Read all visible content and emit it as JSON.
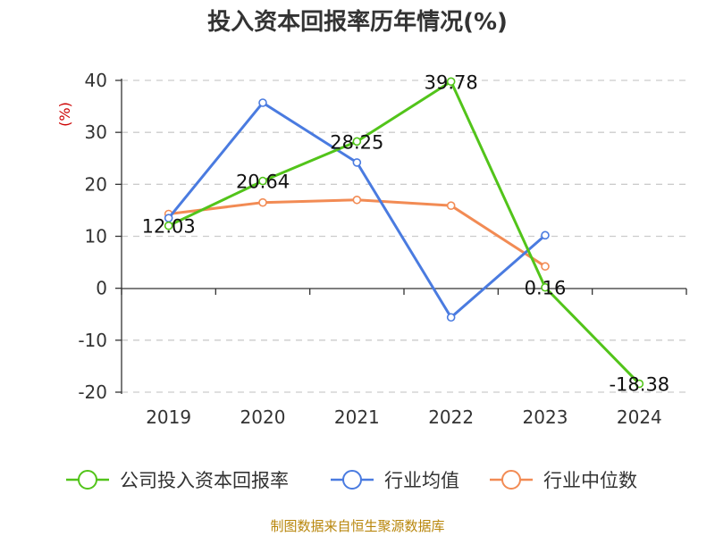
{
  "chart_data": {
    "type": "line",
    "title": "投入资本回报率历年情况(%)",
    "ylabel": "(%)",
    "categories": [
      "2019",
      "2020",
      "2021",
      "2022",
      "2023",
      "2024"
    ],
    "ylim": [
      -20,
      40
    ],
    "yticks": [
      "40",
      "30",
      "20",
      "10",
      "0",
      "-10",
      "-20"
    ],
    "grid": true,
    "legend_position": "bottom",
    "series": [
      {
        "name": "公司投入资本回报率",
        "color": "#52c41a",
        "values": [
          12.03,
          20.64,
          28.25,
          39.78,
          0.16,
          -18.38
        ],
        "labels": [
          "12.03",
          "20.64",
          "28.25",
          "39.78",
          "0.16",
          "-18.38"
        ]
      },
      {
        "name": "行业均值",
        "color": "#4a7be0",
        "values": [
          13.5,
          35.7,
          24.2,
          -5.6,
          10.2,
          null
        ]
      },
      {
        "name": "行业中位数",
        "color": "#f28b54",
        "values": [
          14.3,
          16.5,
          17.0,
          15.9,
          4.2,
          null
        ]
      }
    ]
  },
  "source": "制图数据来自恒生聚源数据库",
  "colors": {
    "ylabel": "#cc0000",
    "source": "#b8860b",
    "axis": "#333333",
    "grid": "#cccccc"
  }
}
